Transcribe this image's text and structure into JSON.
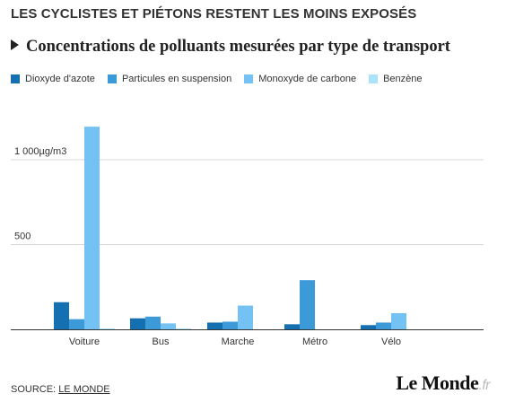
{
  "header": {
    "headline": "LES CYCLISTES ET PIÉTONS RESTENT LES MOINS EXPOSÉS"
  },
  "chart_data": {
    "type": "bar",
    "title": "Concentrations de polluants mesurées par type de transport",
    "categories": [
      "Voiture",
      "Bus",
      "Marche",
      "Métro",
      "Vélo"
    ],
    "series": [
      {
        "name": "Dioxyde d'azote",
        "color": "#1570b2",
        "values": [
          160,
          65,
          40,
          30,
          25
        ]
      },
      {
        "name": "Particules en suspension",
        "color": "#3d9ad9",
        "values": [
          60,
          75,
          45,
          290,
          40
        ]
      },
      {
        "name": "Monoxyde de carbone",
        "color": "#73c2f3",
        "values": [
          1195,
          35,
          140,
          0,
          95
        ]
      },
      {
        "name": "Benzène",
        "color": "#a8e4fb",
        "values": [
          5,
          5,
          0,
          0,
          0
        ]
      }
    ],
    "y_ticks": [
      {
        "value": 500,
        "label": "500"
      },
      {
        "value": 1000,
        "label": "1 000µg/m3"
      }
    ],
    "ylim": [
      0,
      1300
    ],
    "grid": true,
    "legend_position": "top-left"
  },
  "footer": {
    "source_label": "SOURCE: ",
    "source_link": "LE MONDE",
    "logo_text": "Le Monde",
    "logo_suffix": ".fr"
  }
}
